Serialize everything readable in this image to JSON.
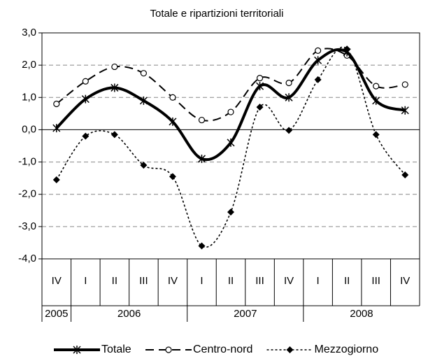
{
  "chart_data": {
    "type": "line",
    "title": "Totale e ripartizioni territoriali",
    "categories": [
      "IV",
      "I",
      "II",
      "III",
      "IV",
      "I",
      "II",
      "III",
      "IV",
      "I",
      "II",
      "III",
      "IV"
    ],
    "category_groups": [
      {
        "label": "2005",
        "count": 1
      },
      {
        "label": "2006",
        "count": 4
      },
      {
        "label": "2007",
        "count": 4
      },
      {
        "label": "2008",
        "count": 4
      }
    ],
    "series": [
      {
        "name": "Totale",
        "color": "#000000",
        "line_style": "solid",
        "marker": "star",
        "values": [
          0.05,
          0.95,
          1.3,
          0.9,
          0.25,
          -0.9,
          -0.4,
          1.35,
          1.0,
          2.15,
          2.4,
          0.9,
          0.6
        ]
      },
      {
        "name": "Centro-nord",
        "color": "#000000",
        "line_style": "dashed",
        "marker": "circle",
        "values": [
          0.8,
          1.5,
          1.95,
          1.75,
          1.0,
          0.3,
          0.55,
          1.6,
          1.45,
          2.45,
          2.3,
          1.35,
          1.4
        ]
      },
      {
        "name": "Mezzogiorno",
        "color": "#000000",
        "line_style": "dotted",
        "marker": "diamond",
        "values": [
          -1.55,
          -0.2,
          -0.15,
          -1.1,
          -1.45,
          -3.6,
          -2.55,
          0.7,
          -0.02,
          1.55,
          2.5,
          -0.15,
          -1.4
        ]
      }
    ],
    "ylim": [
      -4,
      3
    ],
    "yticks": [
      {
        "value": -4,
        "label": "-4,0"
      },
      {
        "value": -3,
        "label": "-3,0"
      },
      {
        "value": -2,
        "label": "-2,0"
      },
      {
        "value": -1,
        "label": "-1,0"
      },
      {
        "value": 0,
        "label": "0,0"
      },
      {
        "value": 1,
        "label": "1,0"
      },
      {
        "value": 2,
        "label": "2,0"
      },
      {
        "value": 3,
        "label": "3,0"
      }
    ],
    "grid": true,
    "smooth": true,
    "legend": "bottom"
  }
}
